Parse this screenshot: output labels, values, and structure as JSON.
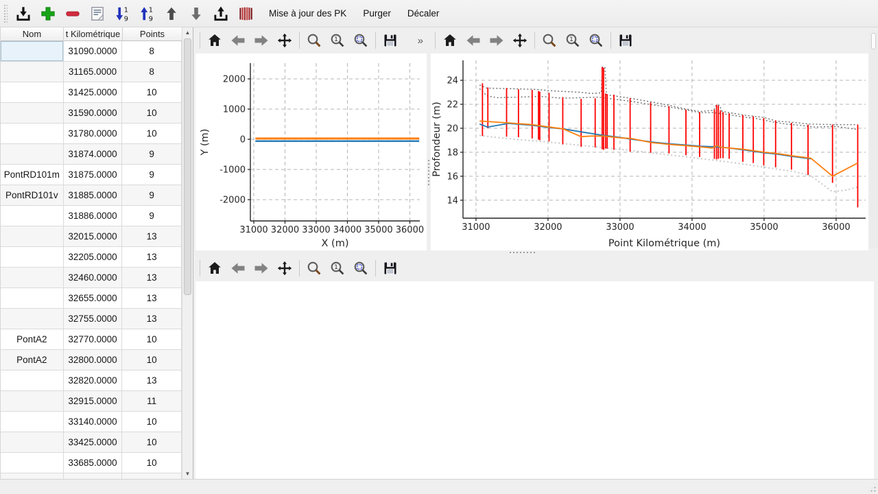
{
  "toolbar": {
    "icons": [
      {
        "name": "import"
      },
      {
        "name": "add"
      },
      {
        "name": "remove"
      },
      {
        "name": "notes"
      },
      {
        "name": "sort-ascending"
      },
      {
        "name": "sort-descending"
      },
      {
        "name": "move-up"
      },
      {
        "name": "move-down"
      },
      {
        "name": "export"
      },
      {
        "name": "profiles"
      }
    ],
    "actions": [
      {
        "name": "update-pk-button",
        "label": "Mise à jour des PK"
      },
      {
        "name": "purge-button",
        "label": "Purger"
      },
      {
        "name": "shift-button",
        "label": "Décaler"
      }
    ]
  },
  "table": {
    "columns": [
      {
        "label": "Nom"
      },
      {
        "label": "t Kilométrique"
      },
      {
        "label": "Points"
      }
    ],
    "rows": [
      [
        "",
        "31090.0000",
        "8"
      ],
      [
        "",
        "31165.0000",
        "8"
      ],
      [
        "",
        "31425.0000",
        "10"
      ],
      [
        "",
        "31590.0000",
        "10"
      ],
      [
        "",
        "31780.0000",
        "10"
      ],
      [
        "",
        "31874.0000",
        "9"
      ],
      [
        "PontRD101m",
        "31875.0000",
        "9"
      ],
      [
        "PontRD101v",
        "31885.0000",
        "9"
      ],
      [
        "",
        "31886.0000",
        "9"
      ],
      [
        "",
        "32015.0000",
        "13"
      ],
      [
        "",
        "32205.0000",
        "13"
      ],
      [
        "",
        "32460.0000",
        "13"
      ],
      [
        "",
        "32655.0000",
        "13"
      ],
      [
        "",
        "32755.0000",
        "13"
      ],
      [
        "PontA2",
        "32770.0000",
        "10"
      ],
      [
        "PontA2",
        "32800.0000",
        "10"
      ],
      [
        "",
        "32820.0000",
        "13"
      ],
      [
        "",
        "32915.0000",
        "11"
      ],
      [
        "",
        "33140.0000",
        "10"
      ],
      [
        "",
        "33425.0000",
        "10"
      ],
      [
        "",
        "33685.0000",
        "10"
      ],
      [
        "",
        "",
        ""
      ]
    ],
    "selected": {
      "row": 0,
      "col": 0
    }
  },
  "plot_toolbar": {
    "icons": [
      "home",
      "back",
      "forward",
      "pan",
      "zoom",
      "zoom-one",
      "zoom-region",
      "save"
    ],
    "overflow_label": "»"
  },
  "chart_data": [
    {
      "id": "trace",
      "type": "line",
      "title": "",
      "xlabel": "X (m)",
      "ylabel": "Y (m)",
      "xlim": [
        30890,
        36320
      ],
      "ylim": [
        -2704,
        2523
      ],
      "xticks": [
        31000,
        32000,
        33000,
        34000,
        35000,
        36000
      ],
      "yticks": [
        -2000,
        -1000,
        0,
        1000,
        2000
      ],
      "grid": true,
      "legend": "none",
      "series": [
        {
          "name": "trace-y-blue",
          "color": "#1f77b4",
          "width": 2.4,
          "dash": "",
          "points": [
            [
              31050,
              -60
            ],
            [
              36300,
              -60
            ]
          ]
        },
        {
          "name": "trace-y-orange",
          "color": "#ff7f0e",
          "width": 3,
          "dash": "",
          "points": [
            [
              31050,
              25
            ],
            [
              36300,
              25
            ]
          ]
        }
      ]
    },
    {
      "id": "profil",
      "type": "line",
      "title": "",
      "xlabel": "Point Kilométrique (m)",
      "ylabel": "Profondeur (m)",
      "xlim": [
        30820,
        36410
      ],
      "ylim": [
        12.5,
        25.66
      ],
      "xticks": [
        31000,
        32000,
        33000,
        34000,
        35000,
        36000
      ],
      "yticks": [
        14,
        16,
        18,
        20,
        22,
        24
      ],
      "grid": true,
      "legend": "none",
      "bars": {
        "name": "profil-verticals",
        "color": "#fe0000",
        "width": 1.8,
        "segments": [
          [
            31090,
            19.35,
            23.75
          ],
          [
            31165,
            20.0,
            23.4
          ],
          [
            31425,
            19.3,
            23.35
          ],
          [
            31590,
            19.25,
            23.25
          ],
          [
            31780,
            19.15,
            23.2
          ],
          [
            31868,
            19.05,
            23.1
          ],
          [
            31886,
            19.0,
            23.05
          ],
          [
            32015,
            18.9,
            22.95
          ],
          [
            32205,
            18.65,
            22.6
          ],
          [
            32460,
            18.45,
            22.45
          ],
          [
            32655,
            18.4,
            22.5
          ],
          [
            32752,
            18.25,
            25.1
          ],
          [
            32772,
            18.2,
            25.05
          ],
          [
            32800,
            18.3,
            22.9
          ],
          [
            32822,
            18.3,
            22.85
          ],
          [
            32915,
            18.2,
            22.8
          ],
          [
            33140,
            18.05,
            22.5
          ],
          [
            33425,
            17.95,
            22.15
          ],
          [
            33680,
            17.9,
            21.85
          ],
          [
            33915,
            17.75,
            21.55
          ],
          [
            34105,
            17.6,
            21.35
          ],
          [
            34310,
            17.45,
            21.55
          ],
          [
            34340,
            17.4,
            21.95
          ],
          [
            34365,
            17.45,
            21.9
          ],
          [
            34395,
            17.5,
            21.5
          ],
          [
            34430,
            17.5,
            21.35
          ],
          [
            34515,
            17.45,
            21.25
          ],
          [
            34705,
            17.2,
            21.1
          ],
          [
            34850,
            17.1,
            21.0
          ],
          [
            34995,
            16.9,
            20.85
          ],
          [
            35160,
            16.75,
            20.65
          ],
          [
            35380,
            16.55,
            20.45
          ],
          [
            35610,
            16.1,
            20.3
          ],
          [
            35950,
            15.45,
            20.3
          ],
          [
            36300,
            13.4,
            20.3
          ]
        ]
      },
      "series": [
        {
          "name": "enveloppe-basse",
          "color": "#c8c8c8",
          "width": 2,
          "dash": "2 3.5",
          "points": [
            [
              31050,
              19.4
            ],
            [
              31500,
              19.1
            ],
            [
              32000,
              18.85
            ],
            [
              32500,
              18.55
            ],
            [
              33000,
              18.25
            ],
            [
              33500,
              17.9
            ],
            [
              34000,
              17.55
            ],
            [
              34500,
              17.2
            ],
            [
              35000,
              16.75
            ],
            [
              35400,
              16.4
            ],
            [
              35650,
              16.05
            ],
            [
              35950,
              14.7
            ],
            [
              36150,
              14.85
            ],
            [
              36300,
              15.1
            ]
          ]
        },
        {
          "name": "enveloppe-haute-1",
          "color": "#6e6e6e",
          "width": 1.4,
          "dash": "2 3",
          "points": [
            [
              31050,
              23.6
            ],
            [
              31150,
              23.35
            ],
            [
              31450,
              23.3
            ],
            [
              31800,
              23.25
            ],
            [
              32100,
              23.1
            ],
            [
              32450,
              23.0
            ],
            [
              32600,
              22.9
            ],
            [
              32740,
              22.95
            ],
            [
              32755,
              25.1
            ],
            [
              32790,
              25.1
            ],
            [
              32810,
              22.8
            ],
            [
              33140,
              22.5
            ],
            [
              33430,
              22.2
            ],
            [
              33690,
              21.9
            ],
            [
              33920,
              21.6
            ],
            [
              34110,
              21.4
            ],
            [
              34300,
              21.5
            ],
            [
              34340,
              21.95
            ],
            [
              34380,
              21.9
            ],
            [
              34420,
              21.4
            ],
            [
              34520,
              21.3
            ],
            [
              34710,
              21.1
            ],
            [
              35000,
              20.9
            ],
            [
              35170,
              20.6
            ],
            [
              35390,
              20.5
            ],
            [
              35620,
              20.35
            ],
            [
              36000,
              20.3
            ],
            [
              36300,
              20.3
            ]
          ]
        },
        {
          "name": "enveloppe-haute-2",
          "color": "#6e6e6e",
          "width": 1.4,
          "dash": "2 3",
          "points": [
            [
              31050,
              23.3
            ],
            [
              31150,
              22.7
            ],
            [
              31300,
              22.55
            ],
            [
              31600,
              22.6
            ],
            [
              31900,
              22.65
            ],
            [
              32200,
              22.5
            ],
            [
              32450,
              22.55
            ],
            [
              32700,
              22.6
            ],
            [
              32950,
              22.4
            ],
            [
              33150,
              22.25
            ],
            [
              33450,
              21.95
            ],
            [
              33700,
              21.75
            ],
            [
              33950,
              21.5
            ],
            [
              34100,
              21.3
            ],
            [
              34300,
              21.3
            ],
            [
              34500,
              21.15
            ],
            [
              34700,
              20.95
            ],
            [
              34900,
              20.8
            ],
            [
              35100,
              20.55
            ],
            [
              35300,
              20.35
            ],
            [
              35500,
              20.25
            ],
            [
              35700,
              20.1
            ],
            [
              36000,
              20.15
            ],
            [
              36300,
              19.9
            ]
          ]
        },
        {
          "name": "profondeur-bleue",
          "color": "#1f77b4",
          "width": 1.8,
          "dash": "",
          "points": [
            [
              31050,
              20.35
            ],
            [
              31160,
              20.1
            ],
            [
              31450,
              20.4
            ],
            [
              31780,
              20.25
            ],
            [
              32020,
              20.05
            ],
            [
              32210,
              19.95
            ],
            [
              32460,
              19.7
            ],
            [
              32770,
              19.4
            ],
            [
              32920,
              19.3
            ],
            [
              33150,
              19.1
            ],
            [
              33440,
              18.85
            ],
            [
              33690,
              18.7
            ],
            [
              33920,
              18.6
            ],
            [
              34110,
              18.5
            ],
            [
              34340,
              18.45
            ],
            [
              34520,
              18.35
            ],
            [
              34710,
              18.2
            ],
            [
              35000,
              17.95
            ],
            [
              35170,
              17.85
            ],
            [
              35390,
              17.65
            ],
            [
              35650,
              17.45
            ]
          ]
        },
        {
          "name": "profondeur-orange",
          "color": "#ff7f0e",
          "width": 1.8,
          "dash": "",
          "points": [
            [
              31050,
              20.6
            ],
            [
              31450,
              20.45
            ],
            [
              31780,
              20.3
            ],
            [
              32020,
              20.1
            ],
            [
              32210,
              19.95
            ],
            [
              32460,
              19.3
            ],
            [
              32600,
              19.35
            ],
            [
              32770,
              19.35
            ],
            [
              33000,
              19.2
            ],
            [
              33150,
              19.15
            ],
            [
              33440,
              18.8
            ],
            [
              33690,
              18.65
            ],
            [
              33920,
              18.55
            ],
            [
              34110,
              18.45
            ],
            [
              34280,
              18.35
            ],
            [
              34340,
              18.55
            ],
            [
              34420,
              18.4
            ],
            [
              34520,
              18.35
            ],
            [
              34710,
              18.25
            ],
            [
              35000,
              18.0
            ],
            [
              35170,
              17.9
            ],
            [
              35390,
              17.7
            ],
            [
              35650,
              17.5
            ],
            [
              35950,
              16.0
            ],
            [
              36300,
              17.1
            ]
          ]
        }
      ]
    }
  ]
}
